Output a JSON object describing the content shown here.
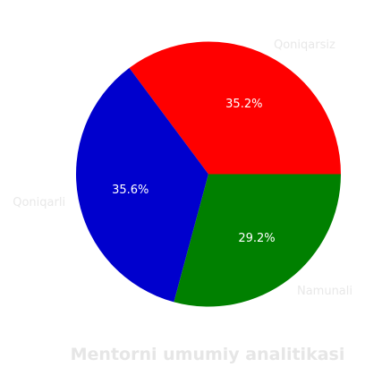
{
  "chart_data": {
    "type": "pie",
    "title": "Mentorni umumiy analitikasi",
    "slices": [
      {
        "label": "Qoniqarsiz",
        "value": 35.2,
        "pct_label": "35.2%",
        "color": "#ff0000"
      },
      {
        "label": "Namunali",
        "value": 29.2,
        "pct_label": "29.2%",
        "color": "#008000"
      },
      {
        "label": "Qoniqarli",
        "value": 35.6,
        "pct_label": "35.6%",
        "color": "#0000cd"
      }
    ],
    "start_direction": "east",
    "direction": "counterclockwise-from-3-oclock-for-first-slice",
    "label_color": "#e8e8e8",
    "pct_text_color": "#ffffff",
    "title_color": "#e6e6e6"
  }
}
